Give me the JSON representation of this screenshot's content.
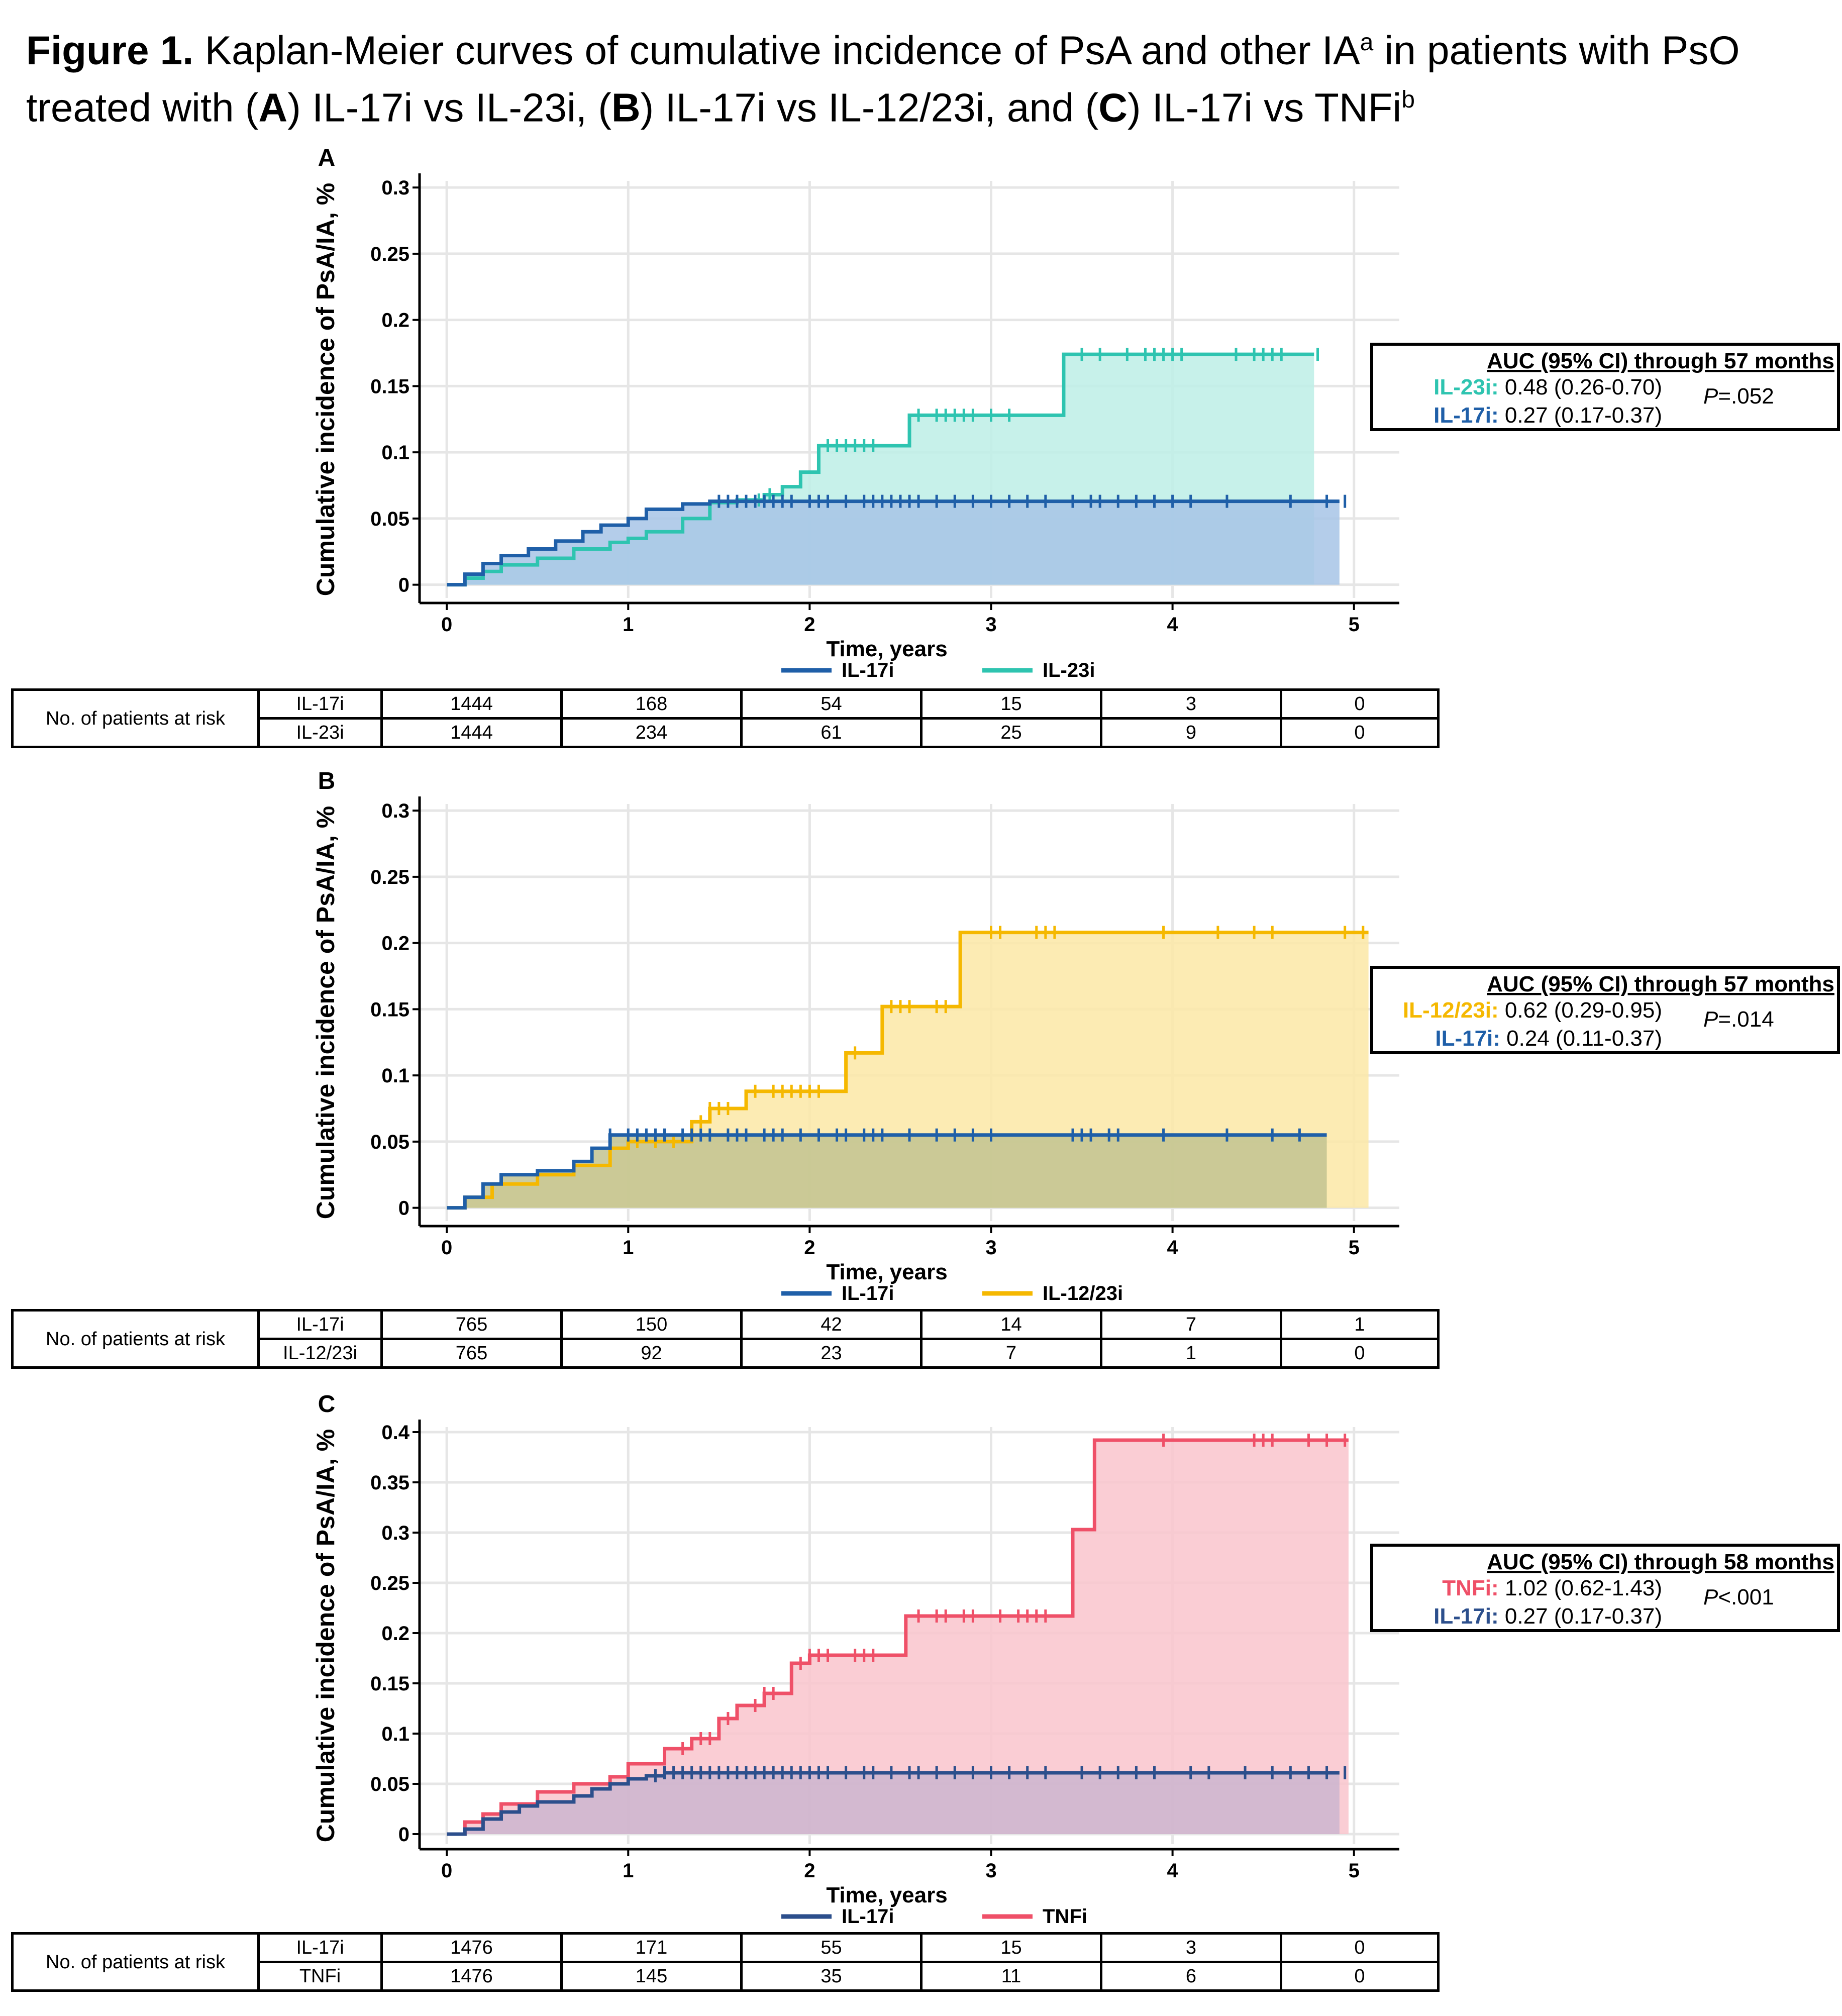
{
  "figure": {
    "label": "Figure 1.",
    "title_line1_pre": "Kaplan-Meier curves of cumulative incidence of PsA and other IA",
    "title_sup_a": "a",
    "title_line1_post": " in patients with PsO",
    "title_line2_pre": "treated with (",
    "A": "A",
    "t_a": ") IL-17i vs IL-23i, (",
    "B": "B",
    "t_b": ") IL-17i vs IL-12/23i, and (",
    "C": "C",
    "t_c": ") IL-17i vs TNFi",
    "title_sup_b": "b"
  },
  "risk_header": "No. of patients at risk",
  "chart_data": [
    {
      "panel": "A",
      "type": "line",
      "xlabel": "Time, years",
      "ylabel": "Cumulative incidence of PsA/IA, %",
      "xlim": [
        -0.15,
        5.25
      ],
      "ylim": [
        -0.01,
        0.305
      ],
      "xticks": [
        "0",
        "1",
        "2",
        "3",
        "4",
        "5"
      ],
      "yticks": [
        "0",
        "0.05",
        "0.1",
        "0.15",
        "0.2",
        "0.25",
        "0.3"
      ],
      "ytick_values": [
        0,
        0.05,
        0.1,
        0.15,
        0.2,
        0.25,
        0.3
      ],
      "series": [
        {
          "name": "IL-23i",
          "color": "#2ec4b0",
          "fill": "#bdeee6",
          "x": [
            0,
            0.1,
            0.2,
            0.3,
            0.5,
            0.7,
            0.9,
            1.0,
            1.1,
            1.3,
            1.45,
            1.6,
            1.75,
            1.85,
            1.95,
            2.05,
            2.3,
            2.55,
            2.7,
            3.0,
            3.2,
            3.4,
            3.7,
            4.0,
            4.4,
            4.78
          ],
          "y": [
            0,
            0.005,
            0.01,
            0.015,
            0.02,
            0.027,
            0.032,
            0.035,
            0.04,
            0.05,
            0.062,
            0.064,
            0.068,
            0.074,
            0.085,
            0.105,
            0.105,
            0.128,
            0.128,
            0.128,
            0.128,
            0.174,
            0.174,
            0.174,
            0.174,
            0.174
          ],
          "censor_x": [
            1.72,
            1.78,
            2.1,
            2.15,
            2.2,
            2.25,
            2.3,
            2.35,
            2.6,
            2.7,
            2.75,
            2.8,
            2.85,
            2.9,
            3.0,
            3.1,
            3.5,
            3.6,
            3.75,
            3.85,
            3.9,
            3.95,
            4.0,
            4.05,
            4.35,
            4.45,
            4.5,
            4.55,
            4.6,
            4.8
          ]
        },
        {
          "name": "IL-17i",
          "color": "#1f5fa8",
          "fill": "#a7c4e6",
          "x": [
            0,
            0.1,
            0.2,
            0.3,
            0.45,
            0.6,
            0.75,
            0.85,
            1.0,
            1.1,
            1.3,
            1.45,
            1.6,
            1.8,
            2.0,
            2.5,
            3.0,
            3.5,
            4.0,
            4.5,
            4.92
          ],
          "y": [
            0,
            0.008,
            0.016,
            0.022,
            0.027,
            0.033,
            0.04,
            0.045,
            0.05,
            0.057,
            0.061,
            0.063,
            0.063,
            0.063,
            0.063,
            0.063,
            0.063,
            0.063,
            0.063,
            0.063,
            0.063
          ],
          "censor_x": [
            1.5,
            1.55,
            1.6,
            1.65,
            1.7,
            1.75,
            1.8,
            1.85,
            1.9,
            2.0,
            2.05,
            2.1,
            2.2,
            2.3,
            2.35,
            2.4,
            2.45,
            2.5,
            2.55,
            2.6,
            2.7,
            2.8,
            2.9,
            3.0,
            3.1,
            3.2,
            3.3,
            3.45,
            3.55,
            3.6,
            3.7,
            3.8,
            3.9,
            4.0,
            4.1,
            4.3,
            4.65,
            4.85,
            4.95
          ]
        }
      ],
      "annotation": {
        "head": "AUC (95% CI) through 57 months",
        "row1_name": "IL-23i:",
        "row1_val": " 0.48 (0.26-0.70)",
        "row2_name": "IL-17i:",
        "row2_val": " 0.27 (0.17-0.37)",
        "p_letter": "P",
        "p_val": "=.052"
      },
      "risk": {
        "rows": [
          {
            "label": "IL-17i",
            "values": [
              "1444",
              "168",
              "54",
              "15",
              "3",
              "0"
            ]
          },
          {
            "label": "IL-23i",
            "values": [
              "1444",
              "234",
              "61",
              "25",
              "9",
              "0"
            ]
          }
        ]
      }
    },
    {
      "panel": "B",
      "type": "line",
      "xlabel": "Time, years",
      "ylabel": "Cumulative incidence of PsA/IA, %",
      "xlim": [
        -0.15,
        5.25
      ],
      "ylim": [
        -0.01,
        0.305
      ],
      "xticks": [
        "0",
        "1",
        "2",
        "3",
        "4",
        "5"
      ],
      "yticks": [
        "0",
        "0.05",
        "0.1",
        "0.15",
        "0.2",
        "0.25",
        "0.3"
      ],
      "ytick_values": [
        0,
        0.05,
        0.1,
        0.15,
        0.2,
        0.25,
        0.3
      ],
      "series": [
        {
          "name": "IL-12/23i",
          "color": "#f5b800",
          "fill": "#fbe7a6",
          "x": [
            0,
            0.1,
            0.25,
            0.5,
            0.7,
            0.9,
            1.0,
            1.2,
            1.35,
            1.45,
            1.65,
            1.95,
            2.2,
            2.4,
            2.6,
            2.8,
            2.83,
            3.2,
            3.6,
            4.0,
            4.5,
            5.08
          ],
          "y": [
            0,
            0.008,
            0.018,
            0.025,
            0.032,
            0.045,
            0.05,
            0.05,
            0.065,
            0.075,
            0.088,
            0.088,
            0.117,
            0.152,
            0.152,
            0.152,
            0.208,
            0.208,
            0.208,
            0.208,
            0.208,
            0.208
          ],
          "censor_x": [
            1.05,
            1.15,
            1.25,
            1.4,
            1.45,
            1.5,
            1.55,
            1.7,
            1.8,
            1.85,
            1.9,
            1.95,
            2.0,
            2.05,
            2.25,
            2.45,
            2.5,
            2.55,
            2.7,
            2.75,
            3.0,
            3.05,
            3.25,
            3.3,
            3.35,
            3.95,
            4.25,
            4.45,
            4.55,
            4.95,
            5.05
          ]
        },
        {
          "name": "IL-17i",
          "color": "#1f5fa8",
          "fill": "#c2c391",
          "x": [
            0,
            0.1,
            0.2,
            0.3,
            0.5,
            0.7,
            0.8,
            0.9,
            1.0,
            1.5,
            2.0,
            2.5,
            3.0,
            3.5,
            4.0,
            4.5,
            4.85
          ],
          "y": [
            0,
            0.008,
            0.018,
            0.025,
            0.028,
            0.035,
            0.045,
            0.055,
            0.055,
            0.055,
            0.055,
            0.055,
            0.055,
            0.055,
            0.055,
            0.055,
            0.055
          ],
          "censor_x": [
            0.9,
            1.0,
            1.05,
            1.1,
            1.15,
            1.2,
            1.3,
            1.35,
            1.4,
            1.45,
            1.55,
            1.6,
            1.65,
            1.75,
            1.8,
            1.85,
            1.95,
            2.05,
            2.15,
            2.2,
            2.3,
            2.35,
            2.4,
            2.55,
            2.7,
            2.8,
            2.9,
            3.0,
            3.45,
            3.5,
            3.55,
            3.65,
            3.7,
            3.95,
            4.3,
            4.55,
            4.7
          ]
        }
      ],
      "annotation": {
        "head": "AUC (95% CI) through 57 months",
        "row1_name": "IL-12/23i:",
        "row1_val": " 0.62 (0.29-0.95)",
        "row2_name": "IL-17i:",
        "row2_val": " 0.24 (0.11-0.37)",
        "p_letter": "P",
        "p_val": "=.014"
      },
      "risk": {
        "rows": [
          {
            "label": "IL-17i",
            "values": [
              "765",
              "150",
              "42",
              "14",
              "7",
              "1"
            ]
          },
          {
            "label": "IL-12/23i",
            "values": [
              "765",
              "92",
              "23",
              "7",
              "1",
              "0"
            ]
          }
        ]
      }
    },
    {
      "panel": "C",
      "type": "line",
      "xlabel": "Time, years",
      "ylabel": "Cumulative incidence of PsA/IA, %",
      "xlim": [
        -0.15,
        5.25
      ],
      "ylim": [
        -0.01,
        0.405
      ],
      "xticks": [
        "0",
        "1",
        "2",
        "3",
        "4",
        "5"
      ],
      "yticks": [
        "0",
        "0.05",
        "0.1",
        "0.15",
        "0.2",
        "0.25",
        "0.3",
        "0.35",
        "0.4"
      ],
      "ytick_values": [
        0,
        0.05,
        0.1,
        0.15,
        0.2,
        0.25,
        0.3,
        0.35,
        0.4
      ],
      "series": [
        {
          "name": "TNFi",
          "color": "#ef5068",
          "fill": "#f9c4cc",
          "x": [
            0,
            0.1,
            0.2,
            0.3,
            0.5,
            0.7,
            0.9,
            1.0,
            1.2,
            1.35,
            1.5,
            1.6,
            1.75,
            1.9,
            2.0,
            2.5,
            2.53,
            3.0,
            3.4,
            3.45,
            3.55,
            3.57,
            4.0,
            4.5,
            4.97
          ],
          "y": [
            0,
            0.012,
            0.02,
            0.03,
            0.042,
            0.05,
            0.057,
            0.07,
            0.085,
            0.095,
            0.115,
            0.128,
            0.14,
            0.17,
            0.178,
            0.178,
            0.217,
            0.217,
            0.217,
            0.303,
            0.303,
            0.392,
            0.392,
            0.392,
            0.392
          ],
          "censor_x": [
            1.3,
            1.4,
            1.45,
            1.55,
            1.7,
            1.75,
            1.8,
            1.95,
            2.0,
            2.05,
            2.1,
            2.25,
            2.3,
            2.35,
            2.6,
            2.7,
            2.75,
            2.85,
            2.9,
            3.05,
            3.15,
            3.2,
            3.25,
            3.3,
            3.95,
            4.45,
            4.5,
            4.55,
            4.75,
            4.85,
            4.95
          ]
        },
        {
          "name": "IL-17i",
          "color": "#2c4f8c",
          "fill": "#cbb5cf",
          "x": [
            0,
            0.1,
            0.2,
            0.3,
            0.4,
            0.5,
            0.7,
            0.8,
            0.9,
            1.0,
            1.1,
            1.2,
            1.5,
            2.0,
            2.5,
            3.0,
            3.5,
            4.0,
            4.5,
            4.92
          ],
          "y": [
            0,
            0.005,
            0.015,
            0.022,
            0.028,
            0.032,
            0.038,
            0.045,
            0.05,
            0.055,
            0.058,
            0.061,
            0.061,
            0.061,
            0.061,
            0.061,
            0.061,
            0.061,
            0.061,
            0.061
          ],
          "censor_x": [
            1.15,
            1.2,
            1.25,
            1.3,
            1.35,
            1.4,
            1.45,
            1.5,
            1.55,
            1.6,
            1.65,
            1.7,
            1.75,
            1.8,
            1.85,
            1.9,
            1.95,
            2.0,
            2.05,
            2.1,
            2.2,
            2.3,
            2.35,
            2.45,
            2.55,
            2.6,
            2.7,
            2.8,
            2.9,
            3.0,
            3.1,
            3.2,
            3.3,
            3.5,
            3.6,
            3.7,
            3.8,
            3.9,
            4.1,
            4.2,
            4.4,
            4.55,
            4.65,
            4.75,
            4.85,
            4.95
          ]
        }
      ],
      "annotation": {
        "head": "AUC (95% CI) through 58 months",
        "row1_name": "TNFi:",
        "row1_val": " 1.02 (0.62-1.43)",
        "row2_name": "IL-17i:",
        "row2_val": " 0.27 (0.17-0.37)",
        "p_letter": "P",
        "p_val": "<.001"
      },
      "risk": {
        "rows": [
          {
            "label": "IL-17i",
            "values": [
              "1476",
              "171",
              "55",
              "15",
              "3",
              "0"
            ]
          },
          {
            "label": "TNFi",
            "values": [
              "1476",
              "145",
              "35",
              "11",
              "6",
              "0"
            ]
          }
        ]
      }
    }
  ]
}
